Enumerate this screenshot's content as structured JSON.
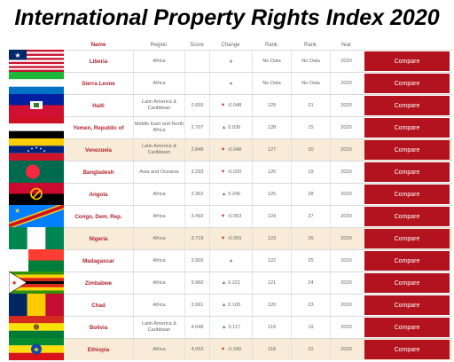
{
  "title": "International Property Rights Index 2020",
  "headers": {
    "name": "Name",
    "region": "Region",
    "score": "Score",
    "change": "Change",
    "rank": "Rank",
    "pct_rank": "Rank",
    "year": "Year"
  },
  "rows": [
    {
      "name": "Liberia",
      "region": "Africa",
      "score": "",
      "dir": "none",
      "change": "",
      "rank": "No Data",
      "pct_rank": "No Data",
      "year": "2020",
      "btn": "Compare",
      "hl": false,
      "flag": "liberia"
    },
    {
      "name": "Sierra Leone",
      "region": "Africa",
      "score": "",
      "dir": "none",
      "change": "",
      "rank": "No Data",
      "pct_rank": "No Data",
      "year": "2020",
      "btn": "Compare",
      "hl": false,
      "flag": "sierra-leone"
    },
    {
      "name": "Haiti",
      "region": "Latin America & Caribbean",
      "score": "2.655",
      "dir": "down",
      "change": "-0.048",
      "rank": "129",
      "pct_rank": "21",
      "year": "2020",
      "btn": "Compare",
      "hl": false,
      "flag": "haiti"
    },
    {
      "name": "Yemen, Republic of",
      "region": "Middle East and North Africa",
      "score": "2.707",
      "dir": "up",
      "change": "0.036",
      "rank": "128",
      "pct_rank": "15",
      "year": "2020",
      "btn": "Compare",
      "hl": false,
      "flag": "yemen"
    },
    {
      "name": "Venezuela",
      "region": "Latin America & Caribbean",
      "score": "2.848",
      "dir": "down",
      "change": "-0.048",
      "rank": "127",
      "pct_rank": "20",
      "year": "2020",
      "btn": "Compare",
      "hl": true,
      "flag": "venezuela"
    },
    {
      "name": "Bangladesh",
      "region": "Asia and Oceania",
      "score": "3.293",
      "dir": "down",
      "change": "-0.020",
      "rank": "126",
      "pct_rank": "19",
      "year": "2020",
      "btn": "Compare",
      "hl": false,
      "flag": "bangladesh"
    },
    {
      "name": "Angola",
      "region": "Africa",
      "score": "3.362",
      "dir": "up",
      "change": "0.246",
      "rank": "125",
      "pct_rank": "28",
      "year": "2020",
      "btn": "Compare",
      "hl": false,
      "flag": "angola"
    },
    {
      "name": "Congo, Dem. Rep.",
      "region": "Africa",
      "score": "3.492",
      "dir": "down",
      "change": "-0.053",
      "rank": "124",
      "pct_rank": "27",
      "year": "2020",
      "btn": "Compare",
      "hl": false,
      "flag": "congo"
    },
    {
      "name": "Nigeria",
      "region": "Africa",
      "score": "3.719",
      "dir": "down",
      "change": "-0.069",
      "rank": "123",
      "pct_rank": "26",
      "year": "2020",
      "btn": "Compare",
      "hl": true,
      "flag": "nigeria"
    },
    {
      "name": "Madagascar",
      "region": "Africa",
      "score": "3.956",
      "dir": "none",
      "change": "",
      "rank": "122",
      "pct_rank": "25",
      "year": "2020",
      "btn": "Compare",
      "hl": false,
      "flag": "madagascar"
    },
    {
      "name": "Zimbabwe",
      "region": "Africa",
      "score": "3.960",
      "dir": "up",
      "change": "0.221",
      "rank": "121",
      "pct_rank": "24",
      "year": "2020",
      "btn": "Compare",
      "hl": false,
      "flag": "zimbabwe"
    },
    {
      "name": "Chad",
      "region": "Africa",
      "score": "3.991",
      "dir": "up",
      "change": "0.105",
      "rank": "120",
      "pct_rank": "23",
      "year": "2020",
      "btn": "Compare",
      "hl": false,
      "flag": "chad"
    },
    {
      "name": "Bolivia",
      "region": "Latin America & Caribbean",
      "score": "4.048",
      "dir": "up",
      "change": "0.117",
      "rank": "119",
      "pct_rank": "19",
      "year": "2020",
      "btn": "Compare",
      "hl": false,
      "flag": "bolivia"
    },
    {
      "name": "Ethiopia",
      "region": "Africa",
      "score": "4.053",
      "dir": "down",
      "change": "-0.340",
      "rank": "118",
      "pct_rank": "22",
      "year": "2020",
      "btn": "Compare",
      "hl": true,
      "flag": "ethiopia"
    }
  ],
  "colors": {
    "accent": "#b3121f",
    "name_text": "#b3222d",
    "highlight": "#f8ecd8",
    "up": "#2e9d4f",
    "down": "#c0392b"
  }
}
